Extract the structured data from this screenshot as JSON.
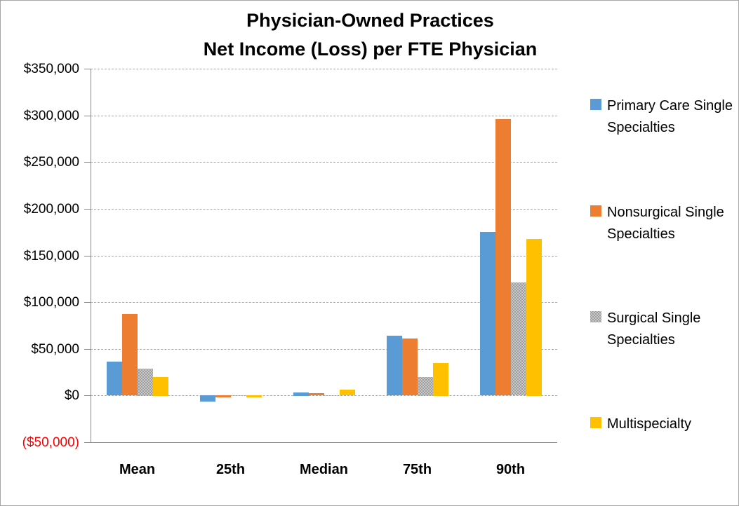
{
  "chart_data": {
    "type": "bar",
    "title_lines": [
      "Physician-Owned Practices",
      "Net Income (Loss) per FTE Physician"
    ],
    "title": "Physician-Owned Practices Net Income (Loss) per FTE Physician",
    "categories": [
      "Mean",
      "25th",
      "Median",
      "75th",
      "90th"
    ],
    "series": [
      {
        "name": "Primary Care Single Specialties",
        "color": "#5B9BD5",
        "pattern": "solid",
        "values": [
          36000,
          -7000,
          3500,
          64000,
          175000
        ]
      },
      {
        "name": "Nonsurgical Single Specialties",
        "color": "#ED7D31",
        "pattern": "solid",
        "values": [
          87000,
          -2000,
          2500,
          61000,
          296000
        ]
      },
      {
        "name": "Surgical Single Specialties",
        "color": "#A5A5A5",
        "pattern": "dotted",
        "values": [
          29000,
          -1000,
          500,
          20000,
          121000
        ]
      },
      {
        "name": "Multispecialty",
        "color": "#FFC000",
        "pattern": "solid",
        "values": [
          20000,
          -2000,
          6000,
          35000,
          168000
        ]
      }
    ],
    "y_axis": {
      "min": -50000,
      "max": 350000,
      "step": 50000,
      "tick_labels": [
        "$350,000",
        "$300,000",
        "$250,000",
        "$200,000",
        "$150,000",
        "$100,000",
        "$50,000",
        "$0",
        "($50,000)"
      ],
      "negative_label_color": "#FF0000"
    },
    "xlabel": "",
    "ylabel": "",
    "ylim": [
      -50000,
      350000
    ],
    "grid": "horizontal-dashed",
    "legend_position": "right",
    "legend_entries": [
      "Primary Care Single Specialties",
      "Nonsurgical Single Specialties",
      "Surgical Single Specialties",
      "Multispecialty"
    ]
  },
  "colors": {
    "title_text": "#000000",
    "axis_line": "#898989",
    "gridline": "#A6A6A6",
    "negative_tick": "#FF0000",
    "frame_border": "#A6A6A6",
    "background": "#FFFFFF"
  }
}
